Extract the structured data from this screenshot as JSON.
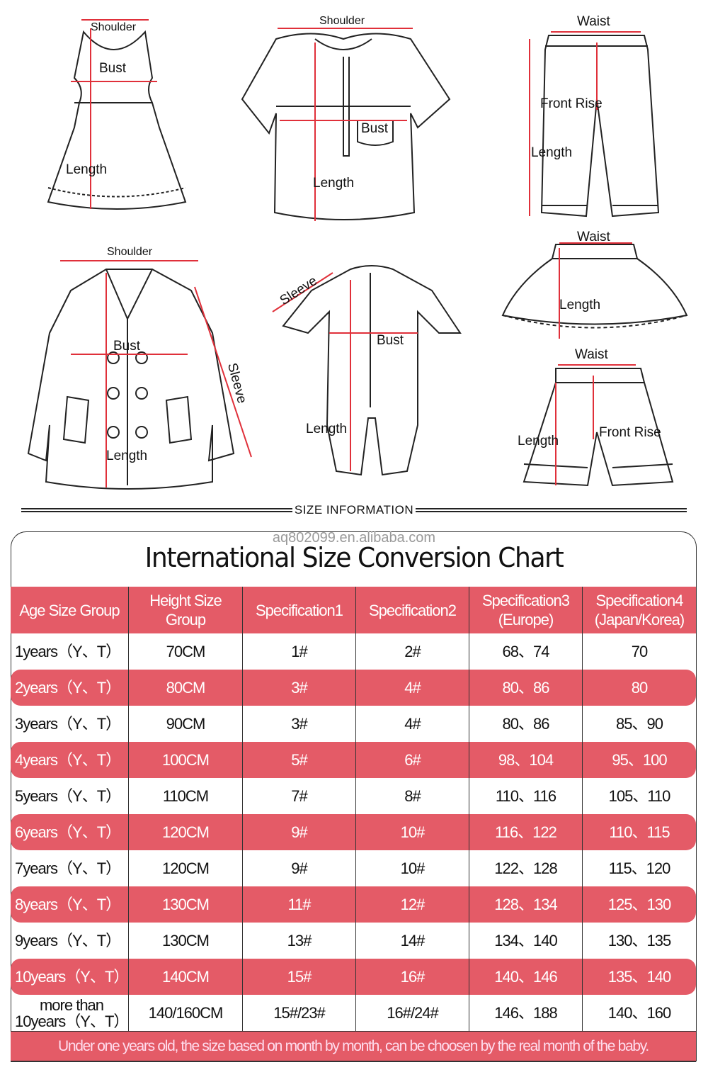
{
  "illustrations": {
    "dress": {
      "shoulder": "Shoulder",
      "bust": "Bust",
      "length": "Length"
    },
    "shirt": {
      "shoulder": "Shoulder",
      "bust": "Bust",
      "length": "Length"
    },
    "pants": {
      "waist": "Waist",
      "front_rise": "Front Rise",
      "length": "Length"
    },
    "coat": {
      "shoulder": "Shoulder",
      "bust": "Bust",
      "sleeve": "Sleeve",
      "length": "Length"
    },
    "romper": {
      "sleeve": "Sleeve",
      "bust": "Bust",
      "length": "Length"
    },
    "skirt": {
      "waist": "Waist",
      "length": "Length"
    },
    "shorts": {
      "waist": "Waist",
      "front_rise": "Front Rise",
      "length": "Length"
    }
  },
  "section_title": "SIZE INFORMATION",
  "watermark": "aq802099.en.alibaba.com",
  "chart_title": "International Size Conversion Chart",
  "colors": {
    "accent": "#e45b67",
    "measure_line": "#e0303a"
  },
  "table": {
    "headers": [
      "Age Size Group",
      "Height Size Group",
      "Specification1",
      "Specification2",
      "Specification3 (Europe)",
      "Specification4 (Japan/Korea)"
    ],
    "rows": [
      [
        "1years（Y、T）",
        "70CM",
        "1#",
        "2#",
        "68、74",
        "70"
      ],
      [
        "2years（Y、T）",
        "80CM",
        "3#",
        "4#",
        "80、86",
        "80"
      ],
      [
        "3years（Y、T）",
        "90CM",
        "3#",
        "4#",
        "80、86",
        "85、90"
      ],
      [
        "4years（Y、T）",
        "100CM",
        "5#",
        "6#",
        "98、104",
        "95、100"
      ],
      [
        "5years（Y、T）",
        "110CM",
        "7#",
        "8#",
        "110、116",
        "105、110"
      ],
      [
        "6years（Y、T）",
        "120CM",
        "9#",
        "10#",
        "116、122",
        "110、115"
      ],
      [
        "7years（Y、T）",
        "120CM",
        "9#",
        "10#",
        "122、128",
        "115、120"
      ],
      [
        "8years（Y、T）",
        "130CM",
        "11#",
        "12#",
        "128、134",
        "125、130"
      ],
      [
        "9years（Y、T）",
        "130CM",
        "13#",
        "14#",
        "134、140",
        "130、135"
      ],
      [
        "10years（Y、T）",
        "140CM",
        "15#",
        "16#",
        "140、146",
        "135、140"
      ],
      [
        "more than 10years（Y、T）",
        "140/160CM",
        "15#/23#",
        "16#/24#",
        "146、188",
        "140、160"
      ]
    ],
    "footnote": "Under one years old, the size based on month by month, can be choosen by the real month of the baby."
  }
}
